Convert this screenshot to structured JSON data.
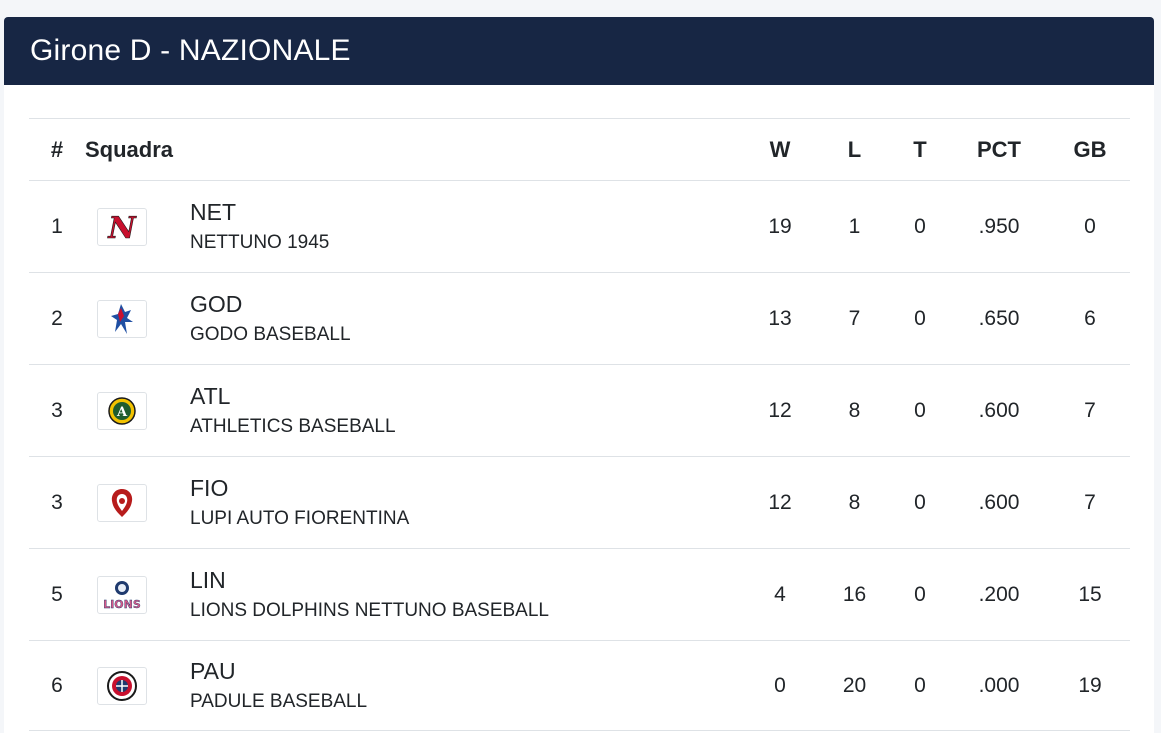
{
  "card": {
    "title": "Girone D - NAZIONALE"
  },
  "columns": {
    "rank": "#",
    "team": "Squadra",
    "w": "W",
    "l": "L",
    "t": "T",
    "pct": "PCT",
    "gb": "GB"
  },
  "rows": [
    {
      "rank": "1",
      "abbr": "NET",
      "name": "NETTUNO 1945",
      "w": "19",
      "l": "1",
      "t": "0",
      "pct": ".950",
      "gb": "0",
      "logo": "nettuno-logo"
    },
    {
      "rank": "2",
      "abbr": "GOD",
      "name": "GODO BASEBALL",
      "w": "13",
      "l": "7",
      "t": "0",
      "pct": ".650",
      "gb": "6",
      "logo": "godo-logo"
    },
    {
      "rank": "3",
      "abbr": "ATL",
      "name": "ATHLETICS BASEBALL",
      "w": "12",
      "l": "8",
      "t": "0",
      "pct": ".600",
      "gb": "7",
      "logo": "athletics-logo"
    },
    {
      "rank": "3",
      "abbr": "FIO",
      "name": "LUPI AUTO FIORENTINA",
      "w": "12",
      "l": "8",
      "t": "0",
      "pct": ".600",
      "gb": "7",
      "logo": "fiorentina-logo"
    },
    {
      "rank": "5",
      "abbr": "LIN",
      "name": "LIONS DOLPHINS NETTUNO BASEBALL",
      "w": "4",
      "l": "16",
      "t": "0",
      "pct": ".200",
      "gb": "15",
      "logo": "lions-logo"
    },
    {
      "rank": "6",
      "abbr": "PAU",
      "name": "PADULE BASEBALL",
      "w": "0",
      "l": "20",
      "t": "0",
      "pct": ".000",
      "gb": "19",
      "logo": "padule-logo"
    }
  ]
}
